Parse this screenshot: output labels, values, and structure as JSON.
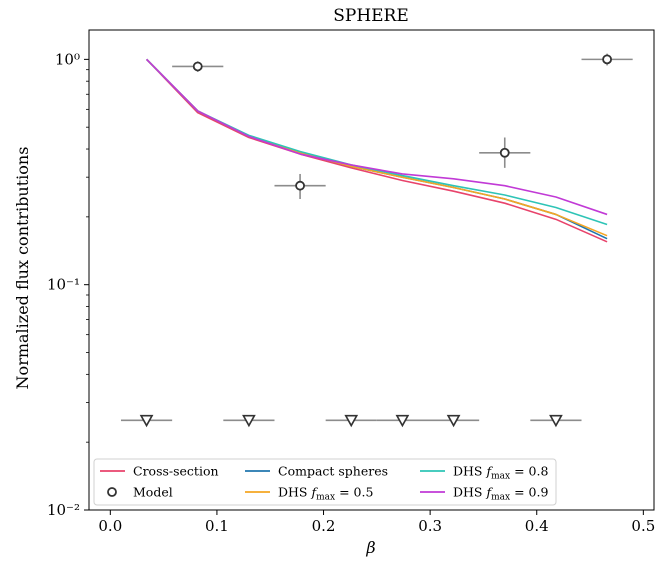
{
  "chart_data": {
    "type": "line",
    "title": "SPHERE",
    "xlabel": "β",
    "ylabel": "Normalized flux contributions",
    "xlim": [
      -0.02,
      0.51
    ],
    "ylim": [
      0.01,
      1.35
    ],
    "yscale": "log",
    "x_ticks": [
      "0.0",
      "0.1",
      "0.2",
      "0.3",
      "0.4",
      "0.5"
    ],
    "y_ticks": [
      {
        "value": 1,
        "label": "10⁰"
      },
      {
        "value": 0.1,
        "label": "10⁻¹"
      },
      {
        "value": 0.01,
        "label": "10⁻²"
      }
    ],
    "grid": false,
    "legend_placement": "bottom",
    "x": [
      0.034,
      0.082,
      0.13,
      0.178,
      0.226,
      0.274,
      0.322,
      0.37,
      0.418,
      0.466
    ],
    "series": [
      {
        "name": "Cross-section",
        "color": "#e8436b",
        "values": [
          1.0,
          0.58,
          0.45,
          0.38,
          0.33,
          0.29,
          0.26,
          0.23,
          0.195,
          0.155
        ]
      },
      {
        "name": "Compact spheres",
        "color": "#2176ae",
        "values": [
          1.0,
          0.59,
          0.455,
          0.385,
          0.335,
          0.3,
          0.27,
          0.24,
          0.205,
          0.16
        ]
      },
      {
        "name": "DHS f_max = 0.5",
        "color": "#f5a623",
        "values": [
          1.0,
          0.59,
          0.455,
          0.385,
          0.335,
          0.3,
          0.27,
          0.24,
          0.205,
          0.165
        ]
      },
      {
        "name": "DHS f_max = 0.8",
        "color": "#2ec4b6",
        "values": [
          1.0,
          0.59,
          0.46,
          0.39,
          0.34,
          0.305,
          0.275,
          0.25,
          0.22,
          0.185
        ]
      },
      {
        "name": "DHS f_max = 0.9",
        "color": "#c13ad6",
        "values": [
          1.0,
          0.59,
          0.455,
          0.38,
          0.34,
          0.31,
          0.295,
          0.275,
          0.245,
          0.205
        ]
      }
    ],
    "model_points": [
      {
        "x": 0.082,
        "y": 0.93,
        "xerr": 0.024,
        "y_low": 0.88,
        "y_high": 0.98
      },
      {
        "x": 0.178,
        "y": 0.275,
        "xerr": 0.024,
        "y_low": 0.24,
        "y_high": 0.31
      },
      {
        "x": 0.37,
        "y": 0.385,
        "xerr": 0.024,
        "y_low": 0.33,
        "y_high": 0.45
      },
      {
        "x": 0.466,
        "y": 1.0,
        "xerr": 0.024,
        "y_low": 0.94,
        "y_high": 1.06
      }
    ],
    "upper_limits": [
      {
        "x": 0.034,
        "y": 0.025,
        "xerr": 0.024
      },
      {
        "x": 0.13,
        "y": 0.025,
        "xerr": 0.024
      },
      {
        "x": 0.226,
        "y": 0.025,
        "xerr": 0.024
      },
      {
        "x": 0.274,
        "y": 0.025,
        "xerr": 0.024
      },
      {
        "x": 0.322,
        "y": 0.025,
        "xerr": 0.024
      },
      {
        "x": 0.418,
        "y": 0.025,
        "xerr": 0.024
      }
    ],
    "legend": {
      "columns": [
        [
          {
            "key": "cross",
            "label": "Cross-section",
            "kind": "line",
            "color": "#e8436b"
          },
          {
            "key": "model",
            "label": "Model",
            "kind": "marker"
          }
        ],
        [
          {
            "key": "compact",
            "label": "Compact spheres",
            "kind": "line",
            "color": "#2176ae"
          },
          {
            "key": "dhs05",
            "label_prefix": "DHS ",
            "label_sub": "max",
            "label_suffix": " = 0.5",
            "kind": "line",
            "color": "#f5a623"
          }
        ],
        [
          {
            "key": "dhs08",
            "label_prefix": "DHS ",
            "label_sub": "max",
            "label_suffix": " = 0.8",
            "kind": "line",
            "color": "#2ec4b6"
          },
          {
            "key": "dhs09",
            "label_prefix": "DHS ",
            "label_sub": "max",
            "label_suffix": " = 0.9",
            "kind": "line",
            "color": "#c13ad6"
          }
        ]
      ]
    }
  }
}
